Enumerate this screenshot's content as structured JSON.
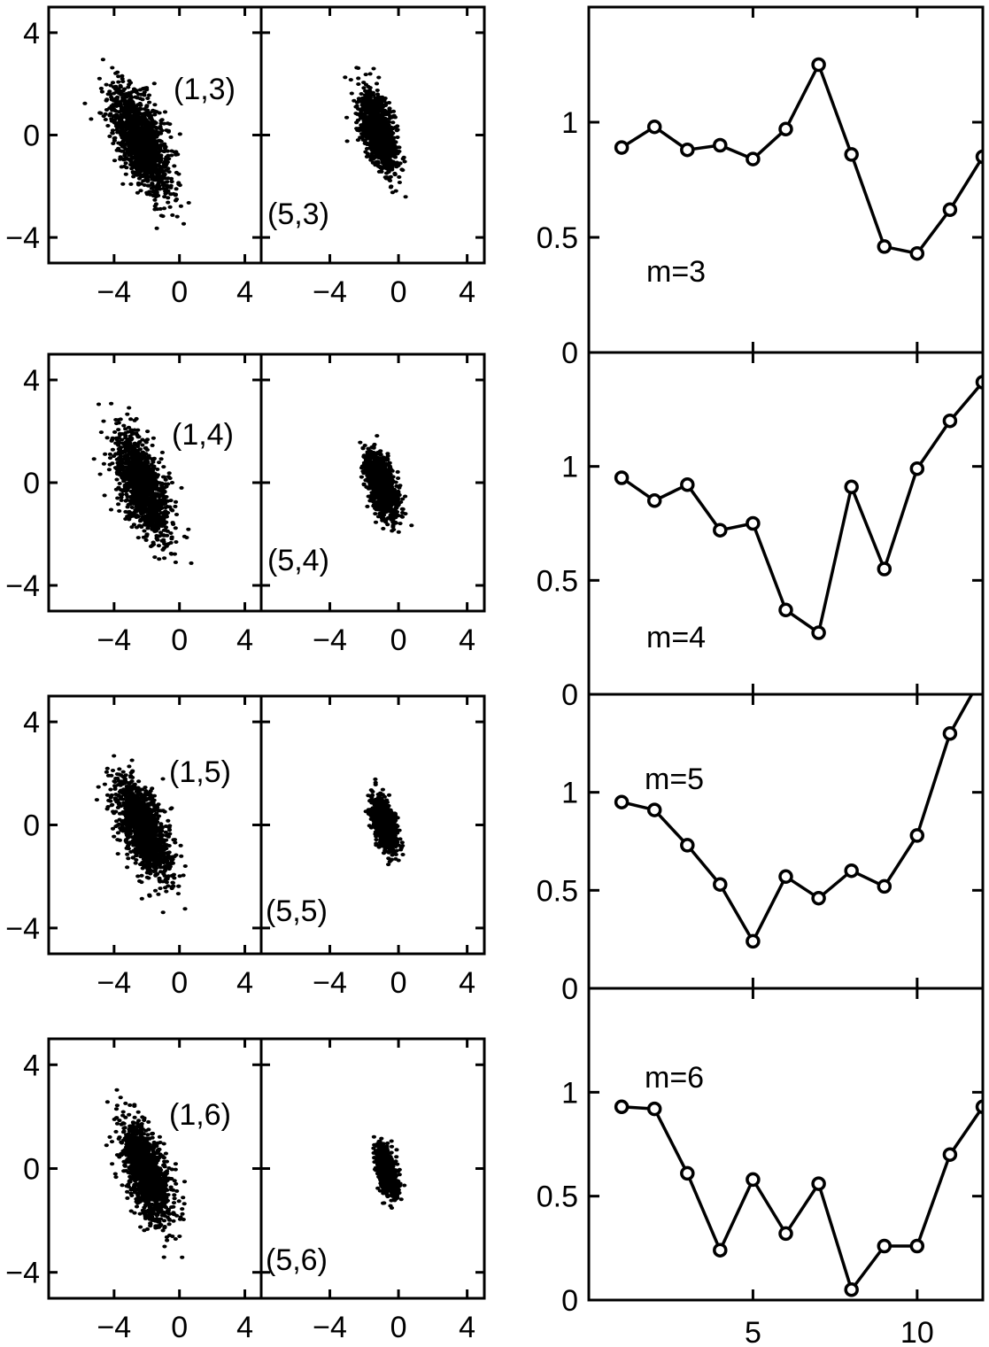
{
  "chart_data": [
    {
      "type": "scatter",
      "label": "(1,3)",
      "xlim": [
        -8,
        5
      ],
      "ylim": [
        -5,
        5
      ],
      "xticks": [
        "−4",
        "0",
        "4"
      ],
      "yticks": [
        "4",
        "0",
        "−4"
      ],
      "cloud": {
        "center": [
          -2.4,
          -0.2
        ],
        "sx": 0.9,
        "sy": 1.05,
        "rho": -0.62,
        "n": 1300
      }
    },
    {
      "type": "scatter",
      "label": "(5,3)",
      "xlim": [
        -8,
        5
      ],
      "ylim": [
        -5,
        5
      ],
      "xticks": [
        "−4",
        "0",
        "4"
      ],
      "yticks": [],
      "cloud": {
        "center": [
          -1.2,
          0.1
        ],
        "sx": 0.55,
        "sy": 0.75,
        "rho": -0.55,
        "n": 1100
      }
    },
    {
      "type": "line",
      "label": "m=3",
      "x": [
        1,
        2,
        3,
        4,
        5,
        6,
        7,
        8,
        9,
        10,
        11,
        12
      ],
      "y": [
        0.89,
        0.98,
        0.88,
        0.9,
        0.84,
        0.97,
        1.25,
        0.86,
        0.46,
        0.43,
        0.62,
        0.85
      ],
      "xlim": [
        0,
        12
      ],
      "ylim": [
        0,
        1.5
      ],
      "yticks": [
        "0",
        "0.5",
        "1"
      ],
      "xticks": []
    },
    {
      "type": "scatter",
      "label": "(1,4)",
      "xlim": [
        -8,
        5
      ],
      "ylim": [
        -5,
        5
      ],
      "xticks": [
        "−4",
        "0",
        "4"
      ],
      "yticks": [
        "4",
        "0",
        "−4"
      ],
      "cloud": {
        "center": [
          -2.3,
          -0.1
        ],
        "sx": 0.85,
        "sy": 1.0,
        "rho": -0.6,
        "n": 1300
      }
    },
    {
      "type": "scatter",
      "label": "(5,4)",
      "xlim": [
        -8,
        5
      ],
      "ylim": [
        -5,
        5
      ],
      "xticks": [
        "−4",
        "0",
        "4"
      ],
      "yticks": [],
      "cloud": {
        "center": [
          -1.0,
          -0.1
        ],
        "sx": 0.45,
        "sy": 0.65,
        "rho": -0.5,
        "n": 1000
      }
    },
    {
      "type": "line",
      "label": "m=4",
      "x": [
        1,
        2,
        3,
        4,
        5,
        6,
        7,
        8,
        9,
        10,
        11,
        12
      ],
      "y": [
        0.95,
        0.85,
        0.92,
        0.72,
        0.75,
        0.37,
        0.27,
        0.91,
        0.55,
        0.99,
        1.2,
        1.37
      ],
      "xlim": [
        0,
        12
      ],
      "ylim": [
        0,
        1.5
      ],
      "yticks": [
        "0",
        "0.5",
        "1"
      ],
      "xticks": []
    },
    {
      "type": "scatter",
      "label": "(1,5)",
      "xlim": [
        -8,
        5
      ],
      "ylim": [
        -5,
        5
      ],
      "xticks": [
        "−4",
        "0",
        "4"
      ],
      "yticks": [
        "4",
        "0",
        "−4"
      ],
      "cloud": {
        "center": [
          -2.2,
          -0.2
        ],
        "sx": 0.8,
        "sy": 0.95,
        "rho": -0.6,
        "n": 1300
      }
    },
    {
      "type": "scatter",
      "label": "(5,5)",
      "xlim": [
        -8,
        5
      ],
      "ylim": [
        -5,
        5
      ],
      "xticks": [
        "−4",
        "0",
        "4"
      ],
      "yticks": [],
      "cloud": {
        "center": [
          -0.8,
          0.0
        ],
        "sx": 0.35,
        "sy": 0.5,
        "rho": -0.45,
        "n": 900
      }
    },
    {
      "type": "line",
      "label": "m=5",
      "x": [
        1,
        2,
        3,
        4,
        5,
        6,
        7,
        8,
        9,
        10,
        11,
        12
      ],
      "y": [
        0.95,
        0.91,
        0.73,
        0.53,
        0.24,
        0.57,
        0.46,
        0.6,
        0.52,
        0.78,
        1.3,
        1.6
      ],
      "xlim": [
        0,
        12
      ],
      "ylim": [
        0,
        1.5
      ],
      "yticks": [
        "0",
        "0.5",
        "1"
      ],
      "xticks": []
    },
    {
      "type": "scatter",
      "label": "(1,6)",
      "xlim": [
        -8,
        5
      ],
      "ylim": [
        -5,
        5
      ],
      "xticks": [
        "−4",
        "0",
        "4"
      ],
      "yticks": [
        "4",
        "0",
        "−4"
      ],
      "cloud": {
        "center": [
          -2.0,
          -0.2
        ],
        "sx": 0.75,
        "sy": 0.95,
        "rho": -0.58,
        "n": 1300
      }
    },
    {
      "type": "scatter",
      "label": "(5,6)",
      "xlim": [
        -8,
        5
      ],
      "ylim": [
        -5,
        5
      ],
      "xticks": [
        "−4",
        "0",
        "4"
      ],
      "yticks": [],
      "cloud": {
        "center": [
          -0.7,
          -0.1
        ],
        "sx": 0.3,
        "sy": 0.45,
        "rho": -0.45,
        "n": 800
      }
    },
    {
      "type": "line",
      "label": "m=6",
      "x": [
        1,
        2,
        3,
        4,
        5,
        6,
        7,
        8,
        9,
        10,
        11,
        12
      ],
      "y": [
        0.93,
        0.92,
        0.61,
        0.24,
        0.58,
        0.32,
        0.56,
        0.05,
        0.26,
        0.26,
        0.7,
        0.93
      ],
      "xlim": [
        0,
        12
      ],
      "ylim": [
        0,
        1.5
      ],
      "yticks": [
        "0",
        "0.5",
        "1"
      ],
      "xticks": [
        "5",
        "10"
      ],
      "xtick_values": [
        5,
        10
      ]
    }
  ]
}
